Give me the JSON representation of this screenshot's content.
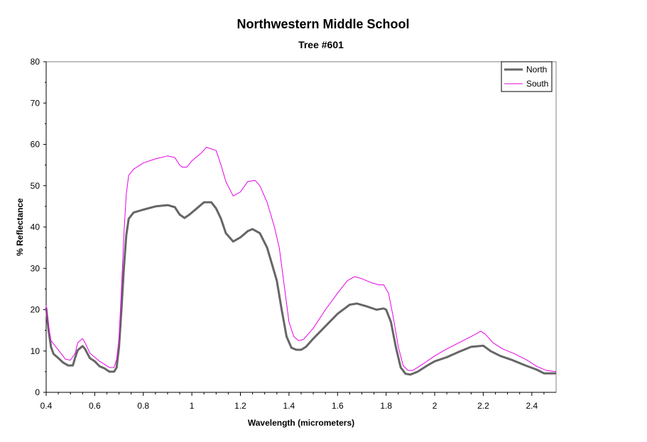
{
  "chart_data": {
    "type": "line",
    "title": "Northwestern Middle School",
    "subtitle": "Tree #601",
    "xlabel": "Wavelength (micrometers)",
    "ylabel": "% Reflectance",
    "xlim": [
      0.4,
      2.5
    ],
    "ylim": [
      0,
      80
    ],
    "x_ticks": [
      0.4,
      0.6,
      0.8,
      1.0,
      1.2,
      1.4,
      1.6,
      1.8,
      2.0,
      2.2,
      2.4
    ],
    "x_tick_labels": [
      "0.4",
      "0.6",
      "0.8",
      "1",
      "1.2",
      "1.4",
      "1.6",
      "1.8",
      "2",
      "2.2",
      "2.4"
    ],
    "y_ticks": [
      0,
      10,
      20,
      30,
      40,
      50,
      60,
      70,
      80
    ],
    "y_tick_labels": [
      "0",
      "10",
      "20",
      "30",
      "40",
      "50",
      "60",
      "70",
      "80"
    ],
    "grid": false,
    "legend_position": "top-right",
    "series": [
      {
        "name": "North",
        "color": "#666666",
        "points": [
          [
            0.4,
            20.5
          ],
          [
            0.41,
            15.0
          ],
          [
            0.42,
            11.0
          ],
          [
            0.43,
            9.3
          ],
          [
            0.45,
            8.3
          ],
          [
            0.47,
            7.2
          ],
          [
            0.49,
            6.5
          ],
          [
            0.51,
            6.5
          ],
          [
            0.52,
            8.5
          ],
          [
            0.53,
            10.2
          ],
          [
            0.55,
            11.2
          ],
          [
            0.56,
            10.5
          ],
          [
            0.58,
            8.3
          ],
          [
            0.6,
            7.5
          ],
          [
            0.62,
            6.3
          ],
          [
            0.64,
            5.8
          ],
          [
            0.66,
            5.0
          ],
          [
            0.68,
            5.0
          ],
          [
            0.69,
            6.0
          ],
          [
            0.7,
            11.0
          ],
          [
            0.71,
            20.0
          ],
          [
            0.72,
            30.0
          ],
          [
            0.73,
            38.0
          ],
          [
            0.74,
            42.0
          ],
          [
            0.76,
            43.5
          ],
          [
            0.8,
            44.2
          ],
          [
            0.85,
            45.0
          ],
          [
            0.9,
            45.3
          ],
          [
            0.93,
            44.8
          ],
          [
            0.95,
            43.0
          ],
          [
            0.97,
            42.2
          ],
          [
            0.99,
            43.0
          ],
          [
            1.02,
            44.5
          ],
          [
            1.05,
            46.0
          ],
          [
            1.08,
            46.0
          ],
          [
            1.1,
            44.5
          ],
          [
            1.12,
            42.0
          ],
          [
            1.14,
            38.5
          ],
          [
            1.17,
            36.5
          ],
          [
            1.2,
            37.5
          ],
          [
            1.23,
            39.0
          ],
          [
            1.25,
            39.5
          ],
          [
            1.28,
            38.5
          ],
          [
            1.31,
            35.0
          ],
          [
            1.33,
            31.0
          ],
          [
            1.35,
            27.0
          ],
          [
            1.37,
            20.0
          ],
          [
            1.39,
            13.5
          ],
          [
            1.41,
            10.8
          ],
          [
            1.43,
            10.3
          ],
          [
            1.45,
            10.3
          ],
          [
            1.47,
            11.0
          ],
          [
            1.5,
            13.0
          ],
          [
            1.55,
            16.0
          ],
          [
            1.6,
            19.0
          ],
          [
            1.65,
            21.2
          ],
          [
            1.68,
            21.5
          ],
          [
            1.72,
            20.8
          ],
          [
            1.76,
            20.0
          ],
          [
            1.79,
            20.3
          ],
          [
            1.8,
            20.0
          ],
          [
            1.82,
            17.0
          ],
          [
            1.84,
            11.0
          ],
          [
            1.86,
            6.0
          ],
          [
            1.88,
            4.5
          ],
          [
            1.9,
            4.3
          ],
          [
            1.93,
            5.0
          ],
          [
            1.97,
            6.5
          ],
          [
            2.0,
            7.5
          ],
          [
            2.05,
            8.5
          ],
          [
            2.1,
            9.8
          ],
          [
            2.15,
            11.0
          ],
          [
            2.2,
            11.3
          ],
          [
            2.23,
            10.0
          ],
          [
            2.27,
            8.8
          ],
          [
            2.32,
            7.8
          ],
          [
            2.37,
            6.6
          ],
          [
            2.42,
            5.5
          ],
          [
            2.45,
            4.6
          ],
          [
            2.5,
            4.6
          ]
        ]
      },
      {
        "name": "South",
        "color": "#e600e6",
        "points": [
          [
            0.4,
            21.0
          ],
          [
            0.41,
            16.0
          ],
          [
            0.42,
            12.5
          ],
          [
            0.44,
            11.0
          ],
          [
            0.46,
            9.5
          ],
          [
            0.48,
            8.0
          ],
          [
            0.5,
            7.8
          ],
          [
            0.52,
            9.5
          ],
          [
            0.53,
            12.0
          ],
          [
            0.55,
            13.0
          ],
          [
            0.56,
            12.0
          ],
          [
            0.58,
            9.5
          ],
          [
            0.6,
            8.5
          ],
          [
            0.62,
            7.5
          ],
          [
            0.64,
            6.8
          ],
          [
            0.66,
            6.0
          ],
          [
            0.68,
            6.0
          ],
          [
            0.69,
            8.0
          ],
          [
            0.7,
            13.0
          ],
          [
            0.71,
            25.0
          ],
          [
            0.72,
            38.0
          ],
          [
            0.73,
            48.0
          ],
          [
            0.74,
            52.5
          ],
          [
            0.76,
            54.0
          ],
          [
            0.8,
            55.5
          ],
          [
            0.85,
            56.5
          ],
          [
            0.9,
            57.2
          ],
          [
            0.93,
            56.8
          ],
          [
            0.95,
            55.0
          ],
          [
            0.96,
            54.5
          ],
          [
            0.98,
            54.5
          ],
          [
            1.0,
            56.0
          ],
          [
            1.04,
            58.0
          ],
          [
            1.06,
            59.3
          ],
          [
            1.1,
            58.5
          ],
          [
            1.12,
            55.0
          ],
          [
            1.14,
            51.0
          ],
          [
            1.17,
            47.5
          ],
          [
            1.2,
            48.5
          ],
          [
            1.23,
            51.0
          ],
          [
            1.26,
            51.3
          ],
          [
            1.28,
            50.0
          ],
          [
            1.31,
            46.0
          ],
          [
            1.34,
            40.0
          ],
          [
            1.36,
            35.0
          ],
          [
            1.38,
            26.0
          ],
          [
            1.4,
            17.0
          ],
          [
            1.42,
            13.5
          ],
          [
            1.44,
            12.5
          ],
          [
            1.46,
            12.8
          ],
          [
            1.5,
            15.5
          ],
          [
            1.55,
            20.0
          ],
          [
            1.6,
            24.0
          ],
          [
            1.64,
            27.0
          ],
          [
            1.67,
            28.0
          ],
          [
            1.7,
            27.5
          ],
          [
            1.74,
            26.5
          ],
          [
            1.77,
            26.0
          ],
          [
            1.79,
            26.0
          ],
          [
            1.81,
            24.0
          ],
          [
            1.83,
            18.0
          ],
          [
            1.85,
            11.0
          ],
          [
            1.87,
            6.5
          ],
          [
            1.89,
            5.3
          ],
          [
            1.91,
            5.3
          ],
          [
            1.95,
            6.8
          ],
          [
            2.0,
            8.8
          ],
          [
            2.05,
            10.5
          ],
          [
            2.1,
            12.0
          ],
          [
            2.15,
            13.5
          ],
          [
            2.19,
            14.8
          ],
          [
            2.21,
            14.0
          ],
          [
            2.24,
            12.0
          ],
          [
            2.28,
            10.5
          ],
          [
            2.33,
            9.3
          ],
          [
            2.38,
            7.8
          ],
          [
            2.42,
            6.3
          ],
          [
            2.46,
            5.3
          ],
          [
            2.5,
            5.0
          ]
        ]
      }
    ]
  }
}
